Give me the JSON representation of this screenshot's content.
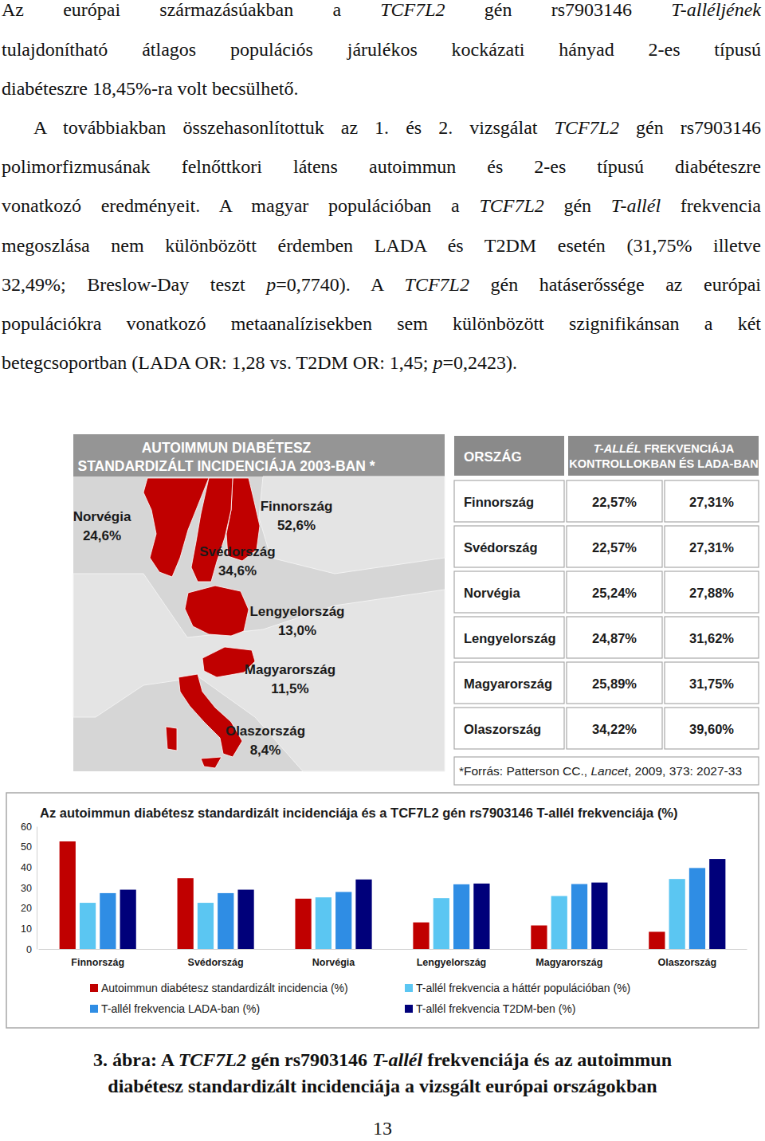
{
  "paragraphs": [
    {
      "lines": [
        [
          {
            "text": "Az európai származásúakban a "
          },
          {
            "text": "TCF7L2",
            "style": "italic"
          },
          {
            "text": " gén rs7903146 "
          },
          {
            "text": "T-alléljének",
            "style": "italic"
          }
        ],
        [
          {
            "text": "tulajdonítható átlagos populációs járulékos kockázati hányad 2-es típusú"
          }
        ],
        [
          {
            "text": "diabéteszre 18,45%-ra volt becsülhető."
          }
        ]
      ]
    },
    {
      "lines": [
        [
          {
            "text": "A továbbiakban összehasonlítottuk az 1. és 2. vizsgálat "
          },
          {
            "text": "TCF7L2",
            "style": "italic"
          },
          {
            "text": " gén rs7903146"
          }
        ],
        [
          {
            "text": "polimorfizmusának felnőttkori látens autoimmun és 2-es típusú diabéteszre"
          }
        ],
        [
          {
            "text": "vonatkozó eredményeit. A magyar populációban a "
          },
          {
            "text": "TCF7L2",
            "style": "italic"
          },
          {
            "text": " gén "
          },
          {
            "text": "T-allél",
            "style": "italic"
          },
          {
            "text": " frekvencia"
          }
        ],
        [
          {
            "text": "megoszlása nem különbözött érdemben LADA és T2DM esetén (31,75% illetve"
          }
        ],
        [
          {
            "text": "32,49%; Breslow-Day teszt "
          },
          {
            "text": "p",
            "style": "italic"
          },
          {
            "text": "=0,7740). A "
          },
          {
            "text": "TCF7L2",
            "style": "italic"
          },
          {
            "text": " gén hatáserőssége az európai"
          }
        ],
        [
          {
            "text": "populációkra vonatkozó metaanalízisekben sem különbözött szignifikánsan a két"
          }
        ],
        [
          {
            "text": "betegcsoportban (LADA OR: 1,28 vs. T2DM OR: 1,45; "
          },
          {
            "text": "p",
            "style": "italic"
          },
          {
            "text": "=0,2423)."
          }
        ]
      ]
    }
  ],
  "map_panel": {
    "title": [
      "AUTOIMMUN DIABÉTESZ",
      "STANDARDIZÁLT INCIDENCIÁJA 2003-BAN *"
    ],
    "countries": [
      {
        "name": "Norvégia",
        "incidence": "24,6%"
      },
      {
        "name": "Finnország",
        "incidence": "52,6%"
      },
      {
        "name": "Svédország",
        "incidence": "34,6%"
      },
      {
        "name": "Lengyelország",
        "incidence": "13,0%"
      },
      {
        "name": "Magyarország",
        "incidence": "11,5%"
      },
      {
        "name": "Olaszország",
        "incidence": "8,4%"
      }
    ]
  },
  "table": {
    "header": {
      "country": "ORSZÁG",
      "frequency": [
        [
          {
            "text": "T-ALLÉL",
            "style": "italic"
          },
          {
            "text": " FREKVENCIÁJA"
          }
        ],
        [
          {
            "text": "KONTROLLOKBAN ÉS LADA-BAN"
          }
        ]
      ]
    },
    "rows": [
      [
        "Finnország",
        "22,57%",
        "27,31%"
      ],
      [
        "Svédország",
        "22,57%",
        "27,31%"
      ],
      [
        "Norvégia",
        "25,24%",
        "27,88%"
      ],
      [
        "Lengyelország",
        "24,87%",
        "31,62%"
      ],
      [
        "Magyarország",
        "25,89%",
        "31,75%"
      ],
      [
        "Olaszország",
        "34,22%",
        "39,60%"
      ]
    ],
    "source": [
      {
        "text": "*Forrás: Patterson CC., "
      },
      {
        "text": "Lancet",
        "style": "italic"
      },
      {
        "text": ", 2009, 373: 2027-33"
      }
    ]
  },
  "chart_data": {
    "type": "bar",
    "title": "Az autoimmun diabétesz standardizált incidenciája és a TCF7L2 gén rs7903146 T-allél frekvenciája (%)",
    "categories": [
      "Finnország",
      "Svédország",
      "Norvégia",
      "Lengyelország",
      "Magyarország",
      "Olaszország"
    ],
    "series": [
      {
        "name": "Autoimmun diabétesz standardizált incidencia (%)",
        "color": "#c00000",
        "values": [
          52.6,
          34.6,
          24.6,
          13.0,
          11.5,
          8.4
        ]
      },
      {
        "name": "T-allél frekvencia a háttér populációban (%)",
        "color": "#5bc6f2",
        "values": [
          22.57,
          22.57,
          25.24,
          24.87,
          25.89,
          34.22
        ]
      },
      {
        "name": "T-allél frekvencia LADA-ban (%)",
        "color": "#2f8de4",
        "values": [
          27.31,
          27.31,
          27.88,
          31.62,
          31.75,
          39.6
        ]
      },
      {
        "name": "T-allél frekvencia T2DM-ben (%)",
        "color": "#00007a",
        "values": [
          29,
          29,
          34,
          32,
          32.49,
          44
        ]
      }
    ],
    "ylim": [
      0,
      60
    ],
    "yticks": [
      0,
      10,
      20,
      30,
      40,
      50,
      60
    ],
    "grid": false,
    "legend": "bottom"
  },
  "caption": [
    [
      {
        "text": "3. ábra: A "
      },
      {
        "text": "TCF7L2",
        "style": "italic"
      },
      {
        "text": " gén rs7903146 "
      },
      {
        "text": "T-allél",
        "style": "italic"
      },
      {
        "text": " frekvenciája és az autoimmun"
      }
    ],
    [
      {
        "text": "diabétesz standardizált incidenciája a vizsgált európai országokban"
      }
    ]
  ],
  "page_number": "13"
}
